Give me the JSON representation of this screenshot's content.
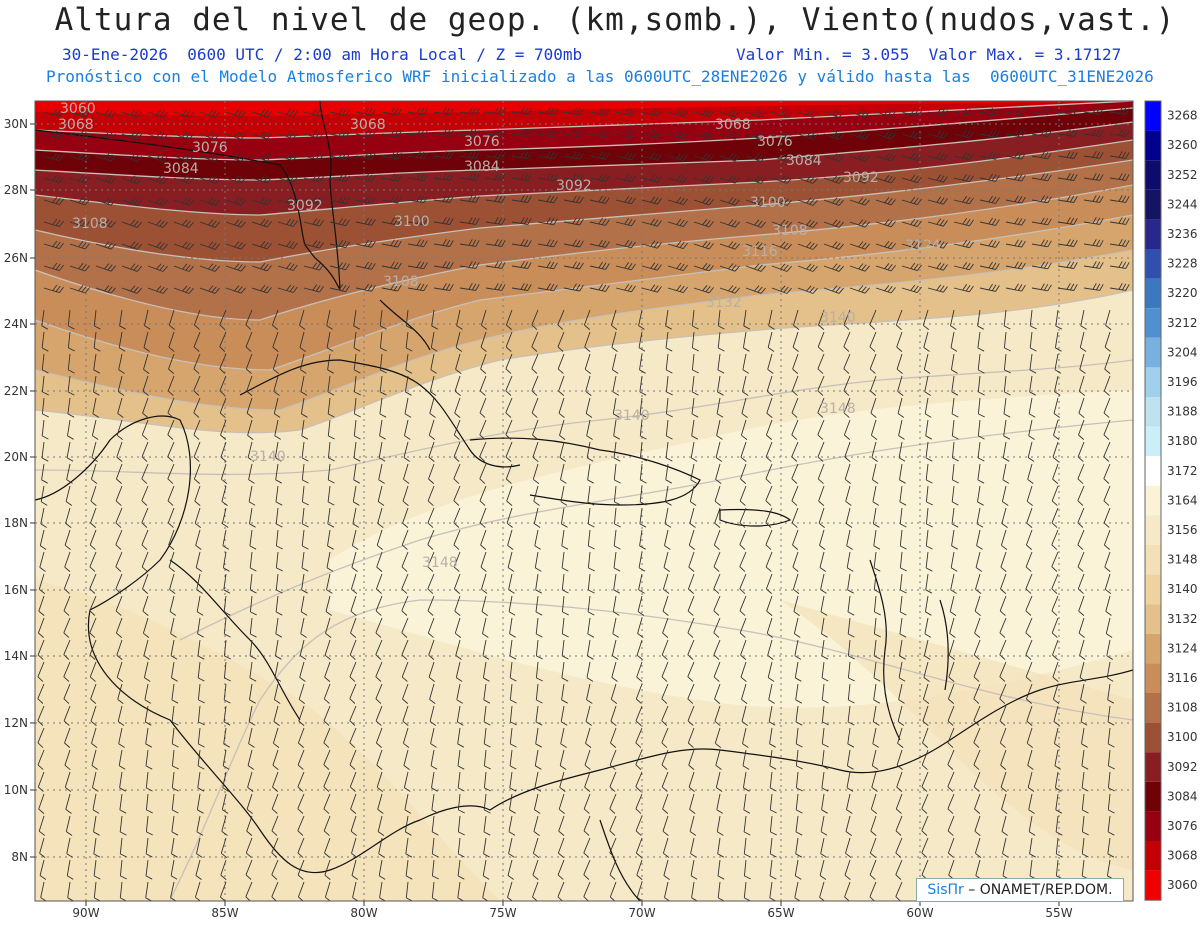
{
  "header": {
    "title": "Altura del nivel de geop. (km,somb.), Viento(nudos,vast.)",
    "date_info": "30-Ene-2026  0600 UTC / 2:00 am Hora Local / Z = 700mb",
    "min_max": "Valor Min. = 3.055  Valor Max. = 3.17127",
    "model_info": "Pronóstico con el Modelo Atmosferico WRF inicializado a las 0600UTC_28ENE2026 y válido hasta las  0600UTC_31ENE2026"
  },
  "axes": {
    "lat_labels": [
      "30N",
      "28N",
      "26N",
      "24N",
      "22N",
      "20N",
      "18N",
      "16N",
      "14N",
      "12N",
      "10N",
      "8N"
    ],
    "lon_labels": [
      "90W",
      "85W",
      "80W",
      "75W",
      "70W",
      "65W",
      "60W",
      "55W"
    ]
  },
  "contour_labels": [
    "3060",
    "3068",
    "3076",
    "3084",
    "3092",
    "3100",
    "3108",
    "3116",
    "3124",
    "3132",
    "3140",
    "3148"
  ],
  "legend": {
    "levels": [
      "3268",
      "3260",
      "3252",
      "3244",
      "3236",
      "3228",
      "3220",
      "3212",
      "3204",
      "3196",
      "3188",
      "3180",
      "3172",
      "3164",
      "3156",
      "3148",
      "3140",
      "3132",
      "3124",
      "3116",
      "3108",
      "3100",
      "3092",
      "3084",
      "3076",
      "3068",
      "3060"
    ],
    "colors": [
      "#0000ff",
      "#000090",
      "#0c0c6e",
      "#141464",
      "#28288c",
      "#3050b0",
      "#3c78c0",
      "#5090d0",
      "#78b0e0",
      "#a0d0ec",
      "#bee2f0",
      "#cceef8",
      "#ffffff",
      "#fbf3d8",
      "#f6e9c7",
      "#f3e0b6",
      "#eed2a0",
      "#e4c08a",
      "#d6a56e",
      "#c98d5a",
      "#b3714a",
      "#9c5034",
      "#881e22",
      "#6e0208",
      "#960010",
      "#c20006",
      "#f00000"
    ]
  },
  "credit": {
    "brand": "SisПr",
    "org": "ONAMET/REP.DOM."
  }
}
